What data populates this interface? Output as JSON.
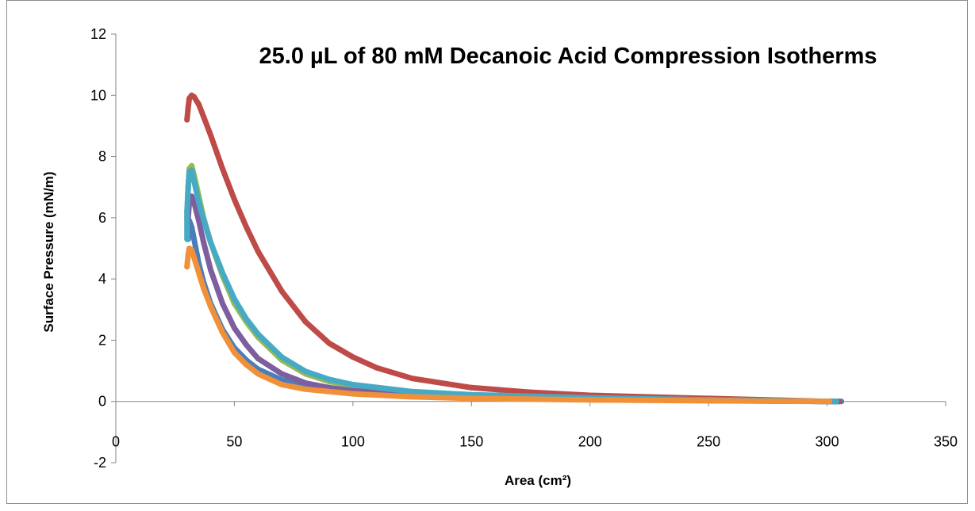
{
  "chart_data": {
    "type": "scatter",
    "title": "25.0 µL of 80 mM Decanoic Acid Compression Isotherms",
    "xlabel": "Area  (cm²)",
    "ylabel": "Surface Pressure (mN/m)",
    "xlim": [
      0,
      350
    ],
    "ylim": [
      -2,
      12
    ],
    "xticks": [
      "0",
      "50",
      "100",
      "150",
      "200",
      "250",
      "300",
      "350"
    ],
    "yticks": [
      "-2",
      "0",
      "2",
      "4",
      "6",
      "8",
      "10",
      "12"
    ],
    "grid": false,
    "legend": "none",
    "series": [
      {
        "color": "#4a7ebb",
        "x": [
          306,
          300,
          250,
          200,
          150,
          120,
          100,
          80,
          70,
          60,
          55,
          50,
          45,
          40,
          37,
          35,
          33,
          32,
          31,
          30.8,
          30.5
        ],
        "y": [
          0.0,
          0.0,
          0.03,
          0.08,
          0.15,
          0.22,
          0.3,
          0.5,
          0.7,
          1.05,
          1.35,
          1.75,
          2.35,
          3.2,
          3.9,
          4.5,
          5.3,
          5.7,
          5.9,
          5.7,
          5.3
        ]
      },
      {
        "color": "#be4b48",
        "x": [
          305,
          300,
          250,
          200,
          175,
          150,
          125,
          110,
          100,
          90,
          80,
          70,
          60,
          55,
          50,
          45,
          40,
          37,
          35,
          33,
          32,
          31,
          30.5,
          30
        ],
        "y": [
          0.0,
          0.0,
          0.1,
          0.2,
          0.3,
          0.45,
          0.75,
          1.1,
          1.45,
          1.9,
          2.6,
          3.6,
          4.9,
          5.7,
          6.6,
          7.6,
          8.7,
          9.3,
          9.7,
          9.95,
          10.0,
          9.9,
          9.6,
          9.2
        ]
      },
      {
        "color": "#98b954",
        "x": [
          304,
          300,
          250,
          200,
          150,
          125,
          100,
          90,
          80,
          70,
          60,
          55,
          50,
          45,
          40,
          37,
          35,
          33,
          32,
          31,
          30.5,
          30
        ],
        "y": [
          0.0,
          0.0,
          0.05,
          0.1,
          0.2,
          0.3,
          0.5,
          0.65,
          0.9,
          1.35,
          2.1,
          2.6,
          3.2,
          4.1,
          5.2,
          6.0,
          6.7,
          7.4,
          7.7,
          7.6,
          7.0,
          6.0
        ]
      },
      {
        "color": "#7d5fa0",
        "x": [
          303,
          300,
          250,
          200,
          150,
          125,
          100,
          90,
          80,
          70,
          60,
          55,
          50,
          45,
          40,
          37,
          35,
          33,
          32,
          31,
          30.5
        ],
        "y": [
          0.0,
          0.0,
          0.03,
          0.08,
          0.15,
          0.22,
          0.35,
          0.45,
          0.6,
          0.9,
          1.4,
          1.85,
          2.4,
          3.2,
          4.3,
          5.2,
          5.9,
          6.5,
          6.7,
          6.5,
          6.0
        ]
      },
      {
        "color": "#46aac5",
        "x": [
          304,
          300,
          250,
          200,
          150,
          125,
          100,
          90,
          80,
          70,
          60,
          55,
          50,
          45,
          40,
          37,
          35,
          33,
          32,
          31,
          30.5,
          30,
          30
        ],
        "y": [
          0.0,
          0.0,
          0.05,
          0.12,
          0.22,
          0.32,
          0.55,
          0.72,
          0.98,
          1.45,
          2.2,
          2.7,
          3.35,
          4.2,
          5.2,
          5.95,
          6.5,
          7.2,
          7.55,
          7.5,
          7.0,
          6.2,
          5.3
        ]
      },
      {
        "color": "#f0913a",
        "x": [
          301,
          300,
          250,
          200,
          150,
          125,
          100,
          80,
          70,
          60,
          55,
          50,
          45,
          40,
          37,
          35,
          33,
          32,
          31,
          30.5,
          30
        ],
        "y": [
          0.0,
          0.0,
          0.02,
          0.05,
          0.1,
          0.15,
          0.25,
          0.4,
          0.55,
          0.9,
          1.2,
          1.6,
          2.25,
          3.1,
          3.7,
          4.2,
          4.7,
          4.95,
          5.0,
          4.8,
          4.4
        ]
      }
    ]
  }
}
